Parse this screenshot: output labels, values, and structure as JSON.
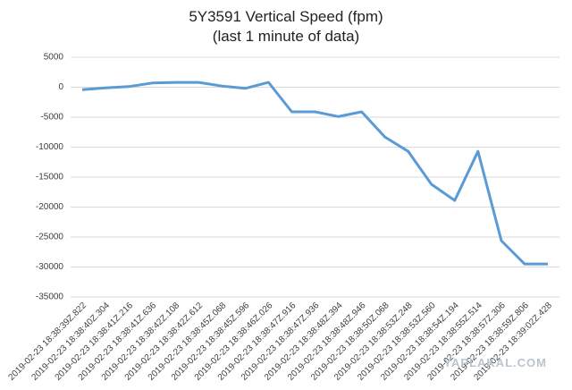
{
  "chart_data": {
    "type": "line",
    "title": "5Y3591 Vertical Speed (fpm)",
    "subtitle": "(last 1 minute of data)",
    "watermark": "YAPLAKAL.COM",
    "categories": [
      "2019-02-23 18:38:39Z.822",
      "2019-02-23 18:38:40Z.304",
      "2019-02-23 18:38:41Z.216",
      "2019-02-23 18:38:41Z.636",
      "2019-02-23 18:38:42Z.108",
      "2019-02-23 18:38:42Z.612",
      "2019-02-23 18:38:45Z.068",
      "2019-02-23 18:38:45Z.596",
      "2019-02-23 18:38:46Z.026",
      "2019-02-23 18:38:47Z.916",
      "2019-02-23 18:38:47Z.936",
      "2019-02-23 18:38:48Z.394",
      "2019-02-23 18:38:48Z.946",
      "2019-02-23 18:38:50Z.068",
      "2019-02-23 18:38:53Z.248",
      "2019-02-23 18:38:53Z.560",
      "2019-02-23 18:38:54Z.194",
      "2019-02-23 18:38:55Z.514",
      "2019-02-23 18:38:57Z.306",
      "2019-02-23 18:38:59Z.806",
      "2019-02-23 18:39:02Z.428"
    ],
    "values": [
      -400,
      -100,
      100,
      700,
      800,
      800,
      200,
      -200,
      800,
      -4100,
      -4100,
      -4900,
      -4100,
      -8300,
      -10700,
      -16200,
      -18900,
      -10700,
      -25600,
      -29500,
      -29500
    ],
    "color": "#5b9bd5",
    "ylim": [
      -35000,
      5000
    ],
    "yticks": [
      -35000,
      -30000,
      -25000,
      -20000,
      -15000,
      -10000,
      -5000,
      0,
      5000
    ],
    "grid": true
  }
}
